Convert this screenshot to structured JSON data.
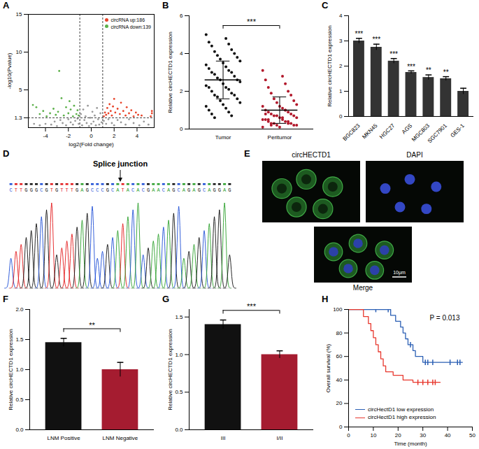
{
  "chart_data": [
    {
      "type": "scatter",
      "title": "A",
      "x_label": "log2(Fold change)",
      "y_label": "-log10(Pvalue)",
      "xlim": [
        -5.5,
        5.5
      ],
      "xticks": [
        -4,
        -2,
        0,
        2,
        4
      ],
      "ylim": [
        0,
        15
      ],
      "yticks": [
        1.3,
        5,
        10,
        15
      ],
      "reference_lines": {
        "x": [
          -1,
          1
        ],
        "y": [
          1.3
        ]
      },
      "series": [
        {
          "name": null,
          "color": "#9a9a9a",
          "x": [
            -4.5,
            -4,
            -3.5,
            -3.2,
            -3,
            -2.7,
            -2.5,
            -2.2,
            -2,
            -1.8,
            -1.6,
            -1.4,
            -1.2,
            -1.1,
            -0.9,
            -0.8,
            -0.7,
            -0.6,
            -0.5,
            -0.4,
            -0.3,
            -0.2,
            -0.1,
            0,
            0.1,
            0.2,
            0.3,
            0.4,
            0.5,
            0.6,
            0.7,
            0.8,
            0.9,
            1.1,
            1.3,
            1.5,
            1.8,
            2,
            2.3,
            2.6,
            3,
            3.3,
            3.7,
            4.2,
            4.6,
            -5,
            5
          ],
          "values": [
            0.3,
            0.5,
            0.4,
            0.8,
            0.2,
            1.0,
            0.6,
            0.3,
            1.1,
            0.7,
            0.4,
            0.9,
            1.2,
            0.5,
            1.8,
            0.3,
            2.4,
            1.0,
            1.5,
            0.6,
            2.9,
            0.2,
            1.3,
            0.5,
            2.1,
            0.8,
            1.6,
            0.3,
            2.6,
            1.1,
            0.4,
            1.9,
            0.7,
            0.9,
            0.5,
            1.1,
            0.6,
            0.3,
            1.0,
            0.7,
            0.4,
            1.1,
            0.6,
            0.3,
            0.8,
            0.5,
            0.4
          ]
        },
        {
          "name": "circRNA up:186",
          "color": "#e8442a",
          "x": [
            1.1,
            1.2,
            1.3,
            1.4,
            1.5,
            1.6,
            1.7,
            1.8,
            1.9,
            2.0,
            2.1,
            2.3,
            2.5,
            2.6,
            2.8,
            3.0,
            3.1,
            3.3,
            3.5,
            3.7,
            3.9,
            4.1,
            4.4,
            5.2,
            5.3,
            5.3
          ],
          "values": [
            1.5,
            2.0,
            1.7,
            2.6,
            1.9,
            3.1,
            2.2,
            1.6,
            2.8,
            3.8,
            2.0,
            2.5,
            1.8,
            3.3,
            2.2,
            1.6,
            2.7,
            1.9,
            2.3,
            1.5,
            2.0,
            1.7,
            1.6,
            1.5,
            1.9,
            2.2
          ]
        },
        {
          "name": "circRNA down:139",
          "color": "#5cb04a",
          "x": [
            -1.1,
            -1.2,
            -1.3,
            -1.5,
            -1.6,
            -1.8,
            -1.9,
            -2.0,
            -2.2,
            -2.4,
            -2.6,
            -2.8,
            -2.9,
            -3.1,
            -3.3,
            -3.6,
            -3.9,
            -4.2,
            -4.5,
            -4.8,
            -5.1
          ],
          "values": [
            1.6,
            2.3,
            1.8,
            2.9,
            1.5,
            2.4,
            3.5,
            1.9,
            2.7,
            1.6,
            3.9,
            7.5,
            2.1,
            1.7,
            2.5,
            1.9,
            1.5,
            2.2,
            1.8,
            2.7,
            3.0
          ]
        }
      ]
    },
    {
      "type": "dot_plot",
      "title": "B",
      "y_label": "Relative circHECTD1 expression",
      "categories": [
        "Tumor",
        "Peritumor"
      ],
      "colors": [
        "#111111",
        "#b2182b"
      ],
      "values": [
        [
          5.0,
          4.8,
          4.6,
          4.5,
          4.4,
          4.2,
          4.1,
          4.0,
          3.9,
          3.8,
          3.7,
          3.6,
          3.5,
          3.4,
          3.3,
          3.2,
          3.1,
          3.0,
          3.0,
          2.9,
          2.8,
          2.7,
          2.6,
          2.6,
          2.5,
          2.4,
          2.3,
          2.2,
          2.2,
          2.1,
          2.0,
          1.9,
          1.8,
          1.8,
          1.7,
          1.6,
          1.5,
          1.4,
          1.3,
          1.2,
          1.1,
          1.0,
          0.9,
          0.8,
          0.7,
          0.6
        ],
        [
          3.1,
          2.8,
          2.6,
          2.4,
          2.2,
          2.0,
          1.9,
          1.8,
          1.6,
          1.5,
          1.4,
          1.3,
          1.2,
          1.2,
          1.1,
          1.0,
          1.0,
          0.9,
          0.9,
          0.8,
          0.8,
          0.7,
          0.7,
          0.7,
          0.6,
          0.6,
          0.5,
          0.5,
          0.5,
          0.4,
          0.4,
          0.4,
          0.3,
          0.3,
          0.3,
          0.2,
          0.2,
          0.2,
          0.1,
          0.1,
          0.6,
          0.8,
          1.0,
          0.5,
          0.3,
          0.2
        ]
      ],
      "mean": [
        2.6,
        1.0
      ],
      "sd": [
        1.0,
        0.7
      ],
      "ylim": [
        0,
        6
      ],
      "yticks": [
        0,
        2,
        4,
        6
      ],
      "annotations": [
        {
          "text": "***",
          "from": "Tumor",
          "to": "Peritumor"
        }
      ]
    },
    {
      "type": "bar",
      "title": "C",
      "y_label": "Relative circHECTD1 expression",
      "categories": [
        "BGC823",
        "MKN45",
        "HGC27",
        "AGS",
        "MGC803",
        "SGC7901",
        "GES-1"
      ],
      "values": [
        3.0,
        2.75,
        2.2,
        1.75,
        1.55,
        1.5,
        1.0
      ],
      "error": [
        0.1,
        0.12,
        0.1,
        0.06,
        0.1,
        0.08,
        0.12
      ],
      "color": "#333333",
      "annotations": [
        "***",
        "***",
        "***",
        "***",
        "**",
        "**",
        null
      ],
      "ylim": [
        0,
        4
      ],
      "yticks": [
        0,
        1,
        2,
        3,
        4
      ]
    },
    {
      "type": "bar",
      "title": "F",
      "y_label": "Relative circHECTD1 expression",
      "categories": [
        "LNM Positive",
        "LNM Negative"
      ],
      "values": [
        1.45,
        1.0
      ],
      "error": [
        0.07,
        0.12
      ],
      "colors": [
        "#111111",
        "#a51c30"
      ],
      "annotations": [
        {
          "text": "**",
          "from": "LNM Positive",
          "to": "LNM Negative"
        }
      ],
      "ylim": [
        0,
        2.0
      ],
      "yticks": [
        {
          "value": 0,
          "label": "0.0"
        },
        {
          "value": 0.5,
          "label": "0.5"
        },
        {
          "value": 1,
          "label": "1.0"
        },
        {
          "value": 1.5,
          "label": "1.5"
        },
        {
          "value": 2,
          "label": "2.0"
        }
      ]
    },
    {
      "type": "bar",
      "title": "G",
      "y_label": "Relative circHECTD1 expression",
      "categories": [
        "III",
        "I/II"
      ],
      "values": [
        1.4,
        1.0
      ],
      "error": [
        0.06,
        0.05
      ],
      "colors": [
        "#111111",
        "#a51c30"
      ],
      "annotations": [
        {
          "text": "***",
          "from": "III",
          "to": "I/II"
        }
      ],
      "ylim": [
        0,
        1.6
      ],
      "yticks": [
        {
          "value": 0,
          "label": "0.0"
        },
        {
          "value": 0.5,
          "label": "0.5"
        },
        {
          "value": 1,
          "label": "1.0"
        },
        {
          "value": 1.5,
          "label": "1.5"
        }
      ]
    },
    {
      "type": "survival",
      "title": "H",
      "x_label": "Time (month)",
      "y_label": "Overall survival (%)",
      "xlim": [
        0,
        50
      ],
      "xticks": [
        0,
        10,
        20,
        30,
        40,
        50
      ],
      "ylim": [
        0,
        100
      ],
      "yticks": [
        0,
        20,
        40,
        60,
        80,
        100
      ],
      "annotations": [
        {
          "text": "P = 0.013"
        }
      ],
      "series": [
        {
          "name": "circHectD1 low expression",
          "color": "#2b5fb4",
          "x": [
            0,
            17,
            19,
            21,
            22,
            23,
            24,
            26,
            27,
            30,
            46
          ],
          "values": [
            100,
            95,
            90,
            85,
            80,
            75,
            70,
            65,
            60,
            55,
            55
          ],
          "censored": {
            "x": [
              11,
              16,
              25,
              31,
              32,
              34,
              41,
              44,
              45
            ],
            "values": [
              100,
              100,
              70,
              55,
              55,
              55,
              55,
              55,
              55
            ]
          }
        },
        {
          "name": "circHectD1 high expression",
          "color": "#e8382e",
          "x": [
            0,
            6,
            8,
            9,
            10,
            11,
            12,
            13,
            14,
            15,
            18,
            22,
            26,
            37
          ],
          "values": [
            100,
            94,
            88,
            82,
            76,
            70,
            64,
            58,
            52,
            47,
            44,
            40,
            38,
            38
          ],
          "censored": {
            "x": [
              28,
              30,
              32,
              34,
              35
            ],
            "values": [
              38,
              38,
              38,
              38,
              38
            ]
          }
        }
      ]
    }
  ],
  "panels": {
    "D": {
      "title": "D",
      "label": "Splice junction",
      "sequence": "CTTGGGCGTGTTTGAGCCCGCATACACGAACAGCAGAGCAGGAG",
      "junction": 22
    },
    "E": {
      "title": "E",
      "images": [
        "circHECTD1",
        "DAPI",
        "Merge"
      ],
      "scale_bar": "10μm"
    }
  }
}
